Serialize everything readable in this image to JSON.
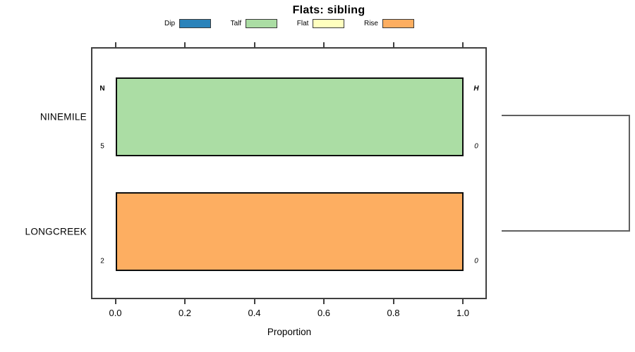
{
  "chart_data": {
    "type": "bar",
    "orientation": "horizontal_stacked_proportion",
    "title": "Flats: sibling",
    "xlabel": "Proportion",
    "xlim": [
      0,
      1
    ],
    "xtick_values": [
      0,
      0.2,
      0.4,
      0.6,
      0.8,
      1
    ],
    "xtick_labels": [
      "0.0",
      "0.2",
      "0.4",
      "0.6",
      "0.8",
      "1.0"
    ],
    "grid": false,
    "legend_position": "top",
    "legend": [
      {
        "label": "Dip",
        "color": "#2b83ba"
      },
      {
        "label": "Talf",
        "color": "#abdda4"
      },
      {
        "label": "Flat",
        "color": "#ffffbf"
      },
      {
        "label": "Rise",
        "color": "#fdae61"
      }
    ],
    "column_headers": {
      "left": "N",
      "right": "H"
    },
    "rows": [
      {
        "category": "NINEMILE",
        "n": "5",
        "h": "0",
        "segments": [
          {
            "label": "Talf",
            "value": 1.0,
            "color": "#abdda4"
          }
        ]
      },
      {
        "category": "LONGCREEK",
        "n": "2",
        "h": "0",
        "segments": [
          {
            "label": "Rise",
            "value": 1.0,
            "color": "#fdae61"
          }
        ]
      }
    ],
    "annotations": {
      "right_cluster_bracket": true
    }
  }
}
